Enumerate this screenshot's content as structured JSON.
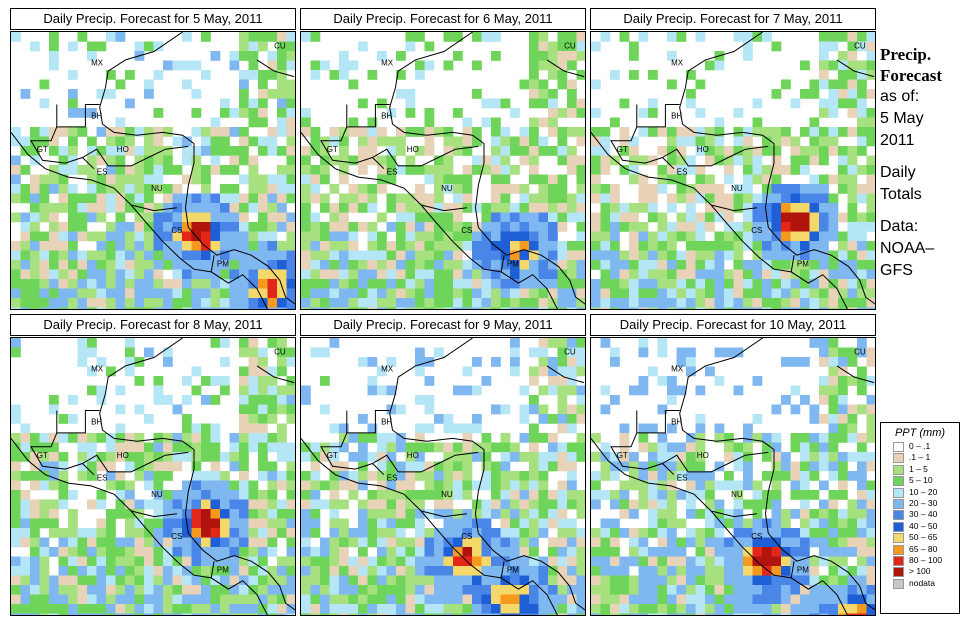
{
  "panels": [
    {
      "title": "Daily Precip. Forecast for  5 May, 2011",
      "seed": 11,
      "wet": 0.55,
      "storms": [
        [
          0.62,
          0.69,
          4
        ],
        [
          0.87,
          0.88,
          3
        ]
      ]
    },
    {
      "title": "Daily Precip. Forecast for  6 May, 2011",
      "seed": 23,
      "wet": 0.45,
      "storms": [
        [
          0.72,
          0.75,
          2
        ]
      ]
    },
    {
      "title": "Daily Precip. Forecast for  7 May, 2011",
      "seed": 37,
      "wet": 0.5,
      "storms": [
        [
          0.68,
          0.65,
          4
        ]
      ]
    },
    {
      "title": "Daily Precip. Forecast for  8 May, 2011",
      "seed": 41,
      "wet": 0.55,
      "storms": [
        [
          0.65,
          0.63,
          4
        ]
      ]
    },
    {
      "title": "Daily Precip. Forecast for  9 May, 2011",
      "seed": 53,
      "wet": 0.62,
      "storms": [
        [
          0.55,
          0.75,
          3
        ],
        [
          0.7,
          0.9,
          2
        ]
      ]
    },
    {
      "title": "Daily Precip. Forecast for  10 May, 2011",
      "seed": 67,
      "wet": 0.7,
      "storms": [
        [
          0.58,
          0.77,
          4
        ],
        [
          0.88,
          0.98,
          3
        ]
      ]
    }
  ],
  "map_labels": [
    "MX",
    "CU",
    "BH",
    "GT",
    "HO",
    "ES",
    "NU",
    "CS",
    "PM"
  ],
  "sidebar": {
    "title_line1": "Precip.",
    "title_line2": "Forecast",
    "asof_line1": "as of:",
    "asof_line2": "5 May",
    "asof_line3": "2011",
    "daily_line1": "Daily",
    "daily_line2": "Totals",
    "data_line1": "Data:",
    "data_line2": "NOAA–",
    "data_line3": "GFS"
  },
  "legend": {
    "title": "PPT (mm)",
    "items": [
      {
        "label": "0 – .1",
        "color": "#ffffff"
      },
      {
        "label": ".1 – 1",
        "color": "#e8d3b8"
      },
      {
        "label": "1 – 5",
        "color": "#a7e07f"
      },
      {
        "label": "5 – 10",
        "color": "#6fd45a"
      },
      {
        "label": "10 – 20",
        "color": "#b5e6f5"
      },
      {
        "label": "20 – 30",
        "color": "#7fb8f0"
      },
      {
        "label": "30 – 40",
        "color": "#4a86e8"
      },
      {
        "label": "40 – 50",
        "color": "#1f5fd6"
      },
      {
        "label": "50 – 65",
        "color": "#f5d86a"
      },
      {
        "label": "65 – 80",
        "color": "#f59a1f"
      },
      {
        "label": "80 – 100",
        "color": "#e3261a"
      },
      {
        "label": "> 100",
        "color": "#b0140c"
      },
      {
        "label": "nodata",
        "color": "#c8c8c8"
      }
    ]
  }
}
